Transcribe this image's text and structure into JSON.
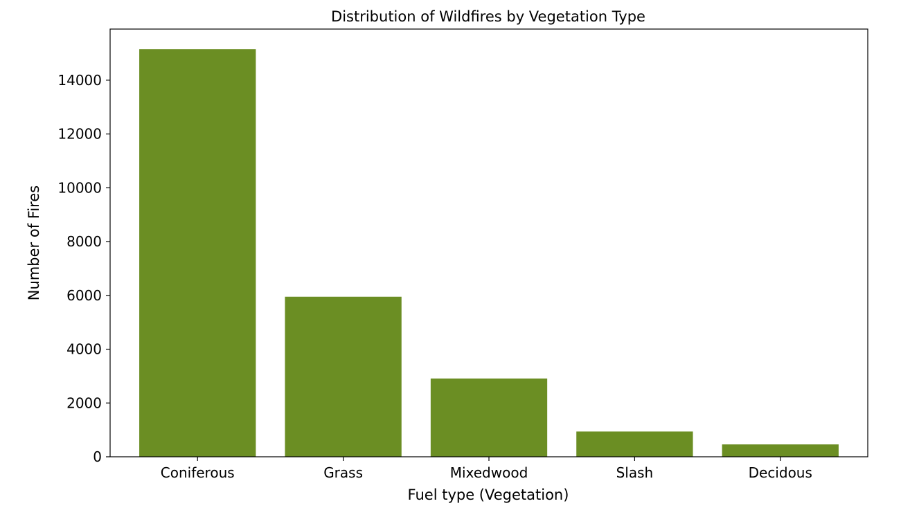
{
  "chart_data": {
    "type": "bar",
    "title": "Distribution of Wildfires by Vegetation Type",
    "xlabel": "Fuel type (Vegetation)",
    "ylabel": "Number of Fires",
    "categories": [
      "Coniferous",
      "Grass",
      "Mixedwood",
      "Slash",
      "Decidous"
    ],
    "values": [
      15150,
      5950,
      2910,
      940,
      460
    ],
    "ylim": [
      0,
      15900
    ],
    "yticks": [
      0,
      2000,
      4000,
      6000,
      8000,
      10000,
      12000,
      14000
    ],
    "grid": false,
    "legend": "none",
    "bar_color": "#6b8e23"
  }
}
